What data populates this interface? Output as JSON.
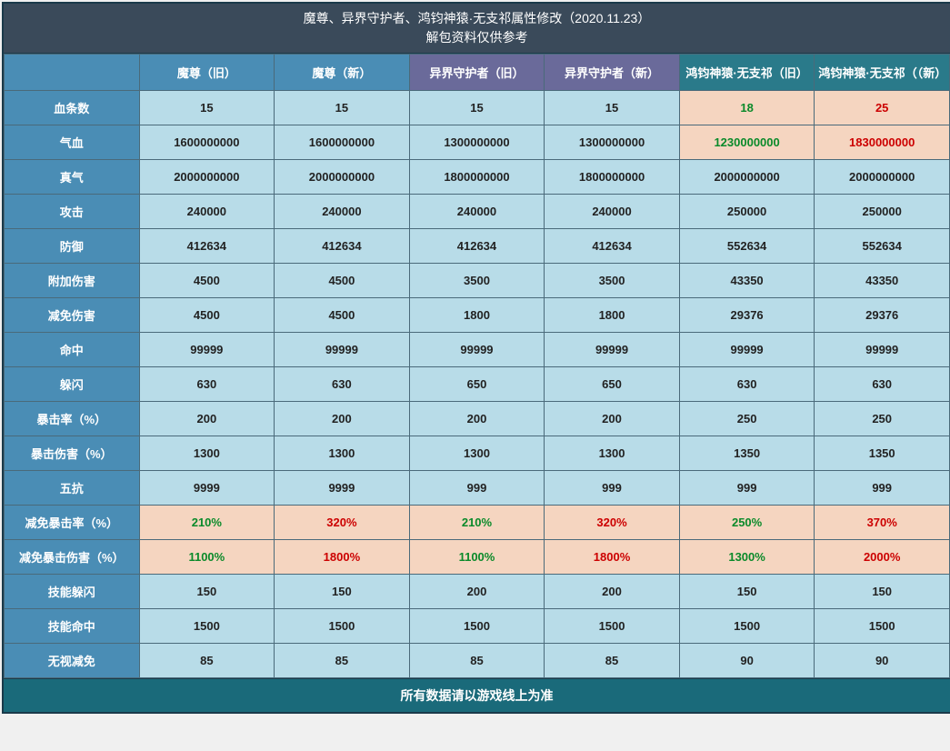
{
  "title_line1": "魔尊、异界守护者、鸿钧神猿·无支祁属性修改（2020.11.23）",
  "title_line2": "解包资料仅供参考",
  "footer": "所有数据请以游戏线上为准",
  "columns": [
    {
      "label": "魔尊（旧）",
      "group": "a"
    },
    {
      "label": "魔尊（新）",
      "group": "a"
    },
    {
      "label": "异界守护者（旧）",
      "group": "b"
    },
    {
      "label": "异界守护者（新）",
      "group": "b"
    },
    {
      "label": "鸿钧神猿·无支祁（旧）",
      "group": "c"
    },
    {
      "label": "鸿钧神猿·无支祁（（新）",
      "group": "c"
    }
  ],
  "rows": [
    {
      "label": "血条数",
      "cells": [
        {
          "v": "15"
        },
        {
          "v": "15"
        },
        {
          "v": "15"
        },
        {
          "v": "15"
        },
        {
          "v": "18",
          "hl": "peach",
          "color": "green"
        },
        {
          "v": "25",
          "hl": "peach",
          "color": "red"
        }
      ]
    },
    {
      "label": "气血",
      "cells": [
        {
          "v": "1600000000"
        },
        {
          "v": "1600000000"
        },
        {
          "v": "1300000000"
        },
        {
          "v": "1300000000"
        },
        {
          "v": "1230000000",
          "hl": "peach",
          "color": "green"
        },
        {
          "v": "1830000000",
          "hl": "peach",
          "color": "red"
        }
      ]
    },
    {
      "label": "真气",
      "cells": [
        {
          "v": "2000000000"
        },
        {
          "v": "2000000000"
        },
        {
          "v": "1800000000"
        },
        {
          "v": "1800000000"
        },
        {
          "v": "2000000000"
        },
        {
          "v": "2000000000"
        }
      ]
    },
    {
      "label": "攻击",
      "cells": [
        {
          "v": "240000"
        },
        {
          "v": "240000"
        },
        {
          "v": "240000"
        },
        {
          "v": "240000"
        },
        {
          "v": "250000"
        },
        {
          "v": "250000"
        }
      ]
    },
    {
      "label": "防御",
      "cells": [
        {
          "v": "412634"
        },
        {
          "v": "412634"
        },
        {
          "v": "412634"
        },
        {
          "v": "412634"
        },
        {
          "v": "552634"
        },
        {
          "v": "552634"
        }
      ]
    },
    {
      "label": "附加伤害",
      "cells": [
        {
          "v": "4500"
        },
        {
          "v": "4500"
        },
        {
          "v": "3500"
        },
        {
          "v": "3500"
        },
        {
          "v": "43350"
        },
        {
          "v": "43350"
        }
      ]
    },
    {
      "label": "减免伤害",
      "cells": [
        {
          "v": "4500"
        },
        {
          "v": "4500"
        },
        {
          "v": "1800"
        },
        {
          "v": "1800"
        },
        {
          "v": "29376"
        },
        {
          "v": "29376"
        }
      ]
    },
    {
      "label": "命中",
      "cells": [
        {
          "v": "99999"
        },
        {
          "v": "99999"
        },
        {
          "v": "99999"
        },
        {
          "v": "99999"
        },
        {
          "v": "99999"
        },
        {
          "v": "99999"
        }
      ]
    },
    {
      "label": "躲闪",
      "cells": [
        {
          "v": "630"
        },
        {
          "v": "630"
        },
        {
          "v": "650"
        },
        {
          "v": "650"
        },
        {
          "v": "630"
        },
        {
          "v": "630"
        }
      ]
    },
    {
      "label": "暴击率（%）",
      "cells": [
        {
          "v": "200"
        },
        {
          "v": "200"
        },
        {
          "v": "200"
        },
        {
          "v": "200"
        },
        {
          "v": "250"
        },
        {
          "v": "250"
        }
      ]
    },
    {
      "label": "暴击伤害（%）",
      "cells": [
        {
          "v": "1300"
        },
        {
          "v": "1300"
        },
        {
          "v": "1300"
        },
        {
          "v": "1300"
        },
        {
          "v": "1350"
        },
        {
          "v": "1350"
        }
      ]
    },
    {
      "label": "五抗",
      "cells": [
        {
          "v": "9999"
        },
        {
          "v": "9999"
        },
        {
          "v": "999"
        },
        {
          "v": "999"
        },
        {
          "v": "999"
        },
        {
          "v": "999"
        }
      ]
    },
    {
      "label": "减免暴击率（%）",
      "cells": [
        {
          "v": "210%",
          "hl": "peach",
          "color": "green"
        },
        {
          "v": "320%",
          "hl": "peach",
          "color": "red"
        },
        {
          "v": "210%",
          "hl": "peach",
          "color": "green"
        },
        {
          "v": "320%",
          "hl": "peach",
          "color": "red"
        },
        {
          "v": "250%",
          "hl": "peach",
          "color": "green"
        },
        {
          "v": "370%",
          "hl": "peach",
          "color": "red"
        }
      ]
    },
    {
      "label": "减免暴击伤害（%）",
      "cells": [
        {
          "v": "1100%",
          "hl": "peach",
          "color": "green"
        },
        {
          "v": "1800%",
          "hl": "peach",
          "color": "red"
        },
        {
          "v": "1100%",
          "hl": "peach",
          "color": "green"
        },
        {
          "v": "1800%",
          "hl": "peach",
          "color": "red"
        },
        {
          "v": "1300%",
          "hl": "peach",
          "color": "green"
        },
        {
          "v": "2000%",
          "hl": "peach",
          "color": "red"
        }
      ]
    },
    {
      "label": "技能躲闪",
      "cells": [
        {
          "v": "150"
        },
        {
          "v": "150"
        },
        {
          "v": "200"
        },
        {
          "v": "200"
        },
        {
          "v": "150"
        },
        {
          "v": "150"
        }
      ]
    },
    {
      "label": "技能命中",
      "cells": [
        {
          "v": "1500"
        },
        {
          "v": "1500"
        },
        {
          "v": "1500"
        },
        {
          "v": "1500"
        },
        {
          "v": "1500"
        },
        {
          "v": "1500"
        }
      ]
    },
    {
      "label": "无视减免",
      "cells": [
        {
          "v": "85"
        },
        {
          "v": "85"
        },
        {
          "v": "85"
        },
        {
          "v": "85"
        },
        {
          "v": "90"
        },
        {
          "v": "90"
        }
      ]
    }
  ],
  "styling": {
    "colors": {
      "title_bg": "#3a4a5a",
      "rowhead_bg": "#4a8db5",
      "cell_bg": "#b8dce8",
      "highlight_peach": "#f5d5c0",
      "green_text": "#0a8a2a",
      "red_text": "#c00",
      "footer_bg": "#1a6a7a",
      "border": "#4a6a7a",
      "group_a": "#4a8db5",
      "group_b": "#6a6a9a",
      "group_c": "#2a7a8a"
    },
    "font_family": "Microsoft YaHei",
    "cell_font_size": 13,
    "title_font_size": 14
  }
}
